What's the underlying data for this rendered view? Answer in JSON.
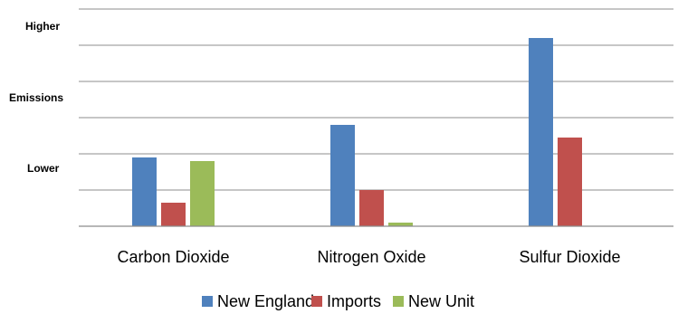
{
  "chart_data": {
    "type": "bar",
    "title": "",
    "xlabel": "",
    "ylabel": "",
    "y_tick_labels": [
      "Higher",
      "Emissions",
      "Lower"
    ],
    "categories": [
      "Carbon Dioxide",
      "Nitrogen Oxide",
      "Sulfur Dioxide"
    ],
    "series": [
      {
        "name": "New England",
        "color": "#4f81bd",
        "values": [
          1.9,
          2.8,
          5.2
        ]
      },
      {
        "name": "Imports",
        "color": "#c0504d",
        "values": [
          0.65,
          1.0,
          2.45
        ]
      },
      {
        "name": "New Unit",
        "color": "#9bbb59",
        "values": [
          1.8,
          0.1,
          0.0
        ]
      }
    ],
    "ylim": [
      0,
      6
    ],
    "grid": true,
    "legend_position": "bottom"
  }
}
